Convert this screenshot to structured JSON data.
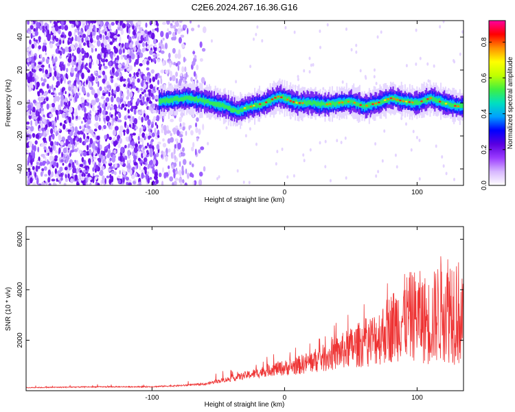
{
  "title": "C2E6.2024.267.16.36.G16",
  "chart_data": [
    {
      "type": "heatmap",
      "xlabel": "Height of straight line (km)",
      "ylabel": "Frequency (Hz)",
      "xlim": [
        -195,
        135
      ],
      "ylim": [
        -50,
        50
      ],
      "xticks": [
        -100,
        0,
        100
      ],
      "xtick_labels": [
        "-100",
        "0",
        "100"
      ],
      "yticks": [
        -40,
        -20,
        0,
        20,
        40
      ],
      "ytick_labels": [
        "-40",
        "-20",
        "0",
        "20",
        "40"
      ],
      "colorbar": {
        "label": "Normalized spectral amplitude",
        "range": [
          0,
          0.92
        ],
        "ticks": [
          0,
          0.2,
          0.4,
          0.6,
          0.8
        ],
        "tick_labels": [
          "0.0",
          "0.2",
          "0.4",
          "0.6",
          "0.8"
        ],
        "colors": [
          "#ffffff",
          "#d8b8ff",
          "#9b3cff",
          "#5a00e0",
          "#0000ff",
          "#00a0ff",
          "#00e0c0",
          "#40f040",
          "#c0ff00",
          "#ffff00",
          "#ff9000",
          "#ff0000",
          "#ff00a0"
        ]
      },
      "ridge": {
        "x": [
          -95,
          -85,
          -75,
          -65,
          -55,
          -45,
          -40,
          -35,
          -30,
          -25,
          -20,
          -15,
          -10,
          -5,
          0,
          5,
          10,
          20,
          30,
          40,
          50,
          60,
          70,
          80,
          90,
          100,
          110,
          120,
          130,
          135
        ],
        "y": [
          1,
          2,
          3,
          2,
          0,
          -2,
          -4,
          -5,
          -3,
          -2,
          -1,
          0,
          2,
          4,
          3,
          1,
          0,
          0,
          -1,
          0,
          1,
          -2,
          0,
          3,
          1,
          0,
          3,
          0,
          -2,
          -2
        ]
      }
    },
    {
      "type": "line",
      "xlabel": "Height of straight line (km)",
      "ylabel": "SNR (10 * v/v)",
      "xlim": [
        -195,
        135
      ],
      "ylim": [
        0,
        6500
      ],
      "xticks": [
        -100,
        0,
        100
      ],
      "xtick_labels": [
        "-100",
        "0",
        "100"
      ],
      "yticks": [
        2000,
        4000,
        6000
      ],
      "ytick_labels": [
        "2000",
        "4000",
        "6000"
      ],
      "color": "#ee3333",
      "envelope": {
        "x": [
          -195,
          -150,
          -100,
          -80,
          -60,
          -50,
          -40,
          -30,
          -20,
          -10,
          0,
          10,
          20,
          30,
          40,
          50,
          60,
          70,
          80,
          90,
          100,
          110,
          120,
          130,
          135
        ],
        "y": [
          120,
          150,
          160,
          200,
          260,
          380,
          480,
          600,
          700,
          850,
          900,
          1000,
          1150,
          1300,
          1500,
          1700,
          1900,
          2100,
          2500,
          2900,
          3000,
          2700,
          3400,
          3300,
          2500
        ]
      }
    }
  ]
}
